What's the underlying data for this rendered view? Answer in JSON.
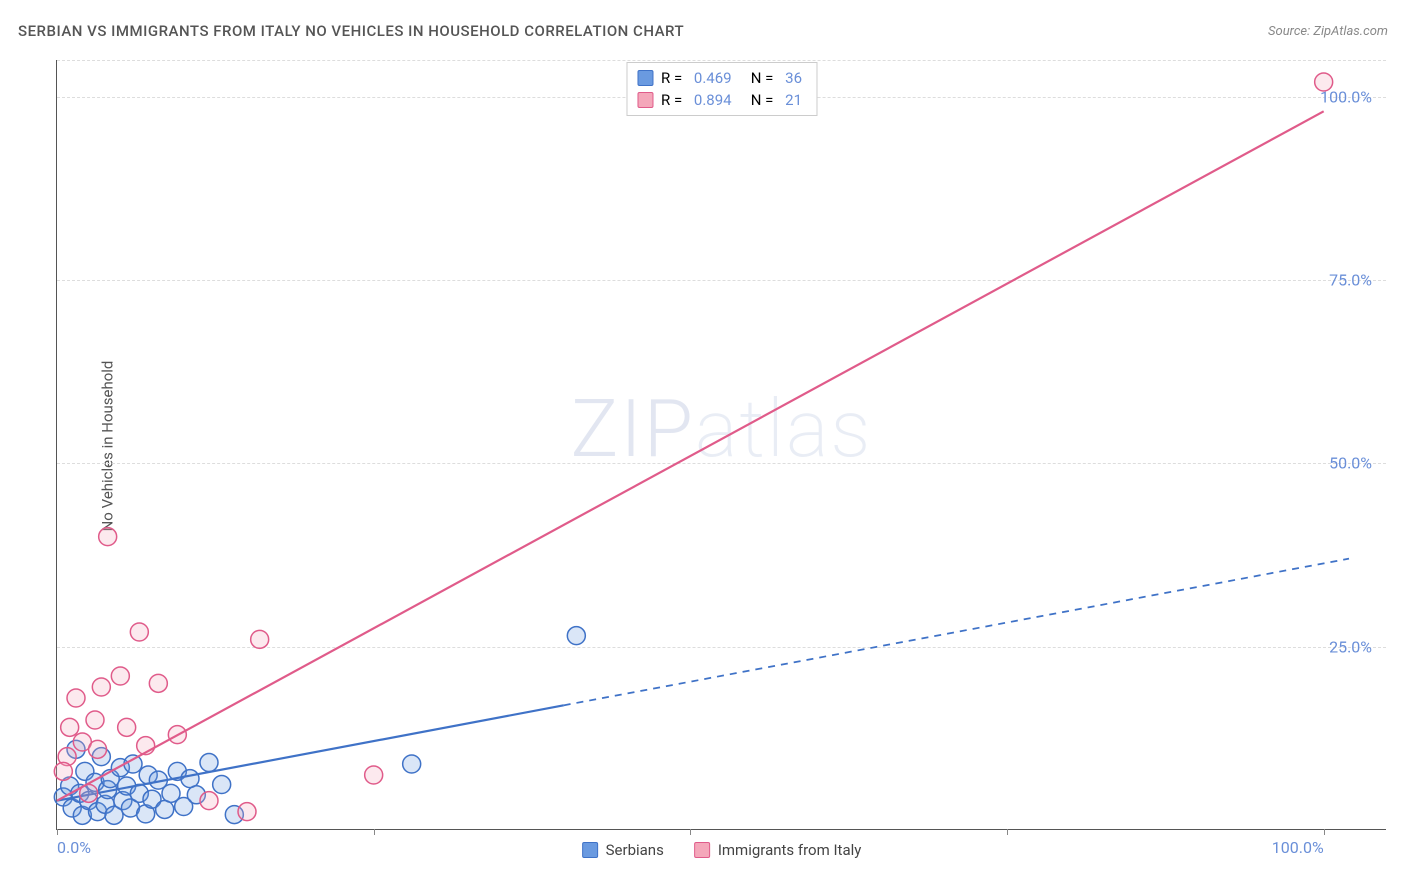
{
  "title": "SERBIAN VS IMMIGRANTS FROM ITALY NO VEHICLES IN HOUSEHOLD CORRELATION CHART",
  "source": "Source: ZipAtlas.com",
  "ylabel": "No Vehicles in Household",
  "watermark_a": "ZIP",
  "watermark_b": "atlas",
  "chart": {
    "type": "scatter",
    "xlim": [
      0,
      105
    ],
    "ylim": [
      0,
      105
    ],
    "ytick_values": [
      25,
      50,
      75,
      100
    ],
    "ytick_labels": [
      "25.0%",
      "50.0%",
      "75.0%",
      "100.0%"
    ],
    "xtick_values": [
      0,
      25,
      50,
      75,
      100
    ],
    "xtick_labels_left": "0.0%",
    "xtick_labels_right": "100.0%",
    "background_color": "#ffffff",
    "grid_color": "#dddddd",
    "axis_color": "#555555",
    "tick_label_color": "#6a8fd8",
    "marker_radius": 9,
    "marker_stroke_width": 1.5,
    "marker_fill_opacity": 0.25,
    "series": [
      {
        "name": "Serbians",
        "color": "#6a9ae0",
        "stroke": "#3f72c7",
        "r_value": "0.469",
        "n_value": "36",
        "line": {
          "x1": 0,
          "y1": 4,
          "x2": 40,
          "y2": 17,
          "dash_x2": 102,
          "dash_y2": 37,
          "width": 2.2
        },
        "points": [
          [
            0.5,
            4.5
          ],
          [
            1,
            6
          ],
          [
            1.2,
            3
          ],
          [
            1.5,
            11
          ],
          [
            1.8,
            5
          ],
          [
            2,
            2
          ],
          [
            2.2,
            8
          ],
          [
            2.5,
            4
          ],
          [
            3,
            6.5
          ],
          [
            3.2,
            2.5
          ],
          [
            3.5,
            10
          ],
          [
            3.8,
            3.5
          ],
          [
            4,
            5.5
          ],
          [
            4.2,
            7
          ],
          [
            4.5,
            2
          ],
          [
            5,
            8.5
          ],
          [
            5.2,
            4
          ],
          [
            5.5,
            6
          ],
          [
            5.8,
            3
          ],
          [
            6,
            9
          ],
          [
            6.5,
            5
          ],
          [
            7,
            2.2
          ],
          [
            7.2,
            7.5
          ],
          [
            7.5,
            4.2
          ],
          [
            8,
            6.8
          ],
          [
            8.5,
            2.8
          ],
          [
            9,
            5
          ],
          [
            9.5,
            8
          ],
          [
            10,
            3.2
          ],
          [
            10.5,
            7
          ],
          [
            11,
            4.8
          ],
          [
            12,
            9.2
          ],
          [
            13,
            6.2
          ],
          [
            14,
            2.1
          ],
          [
            28,
            9
          ],
          [
            41,
            26.5
          ]
        ]
      },
      {
        "name": "Immigrants from Italy",
        "color": "#f4a7ba",
        "stroke": "#e05b8a",
        "r_value": "0.894",
        "n_value": "21",
        "line": {
          "x1": 0,
          "y1": 4,
          "x2": 100,
          "y2": 98,
          "width": 2.2
        },
        "points": [
          [
            0.8,
            10
          ],
          [
            1,
            14
          ],
          [
            1.5,
            18
          ],
          [
            2,
            12
          ],
          [
            0.5,
            8
          ],
          [
            2.5,
            5
          ],
          [
            3,
            15
          ],
          [
            3.2,
            11
          ],
          [
            3.5,
            19.5
          ],
          [
            4,
            40
          ],
          [
            5,
            21
          ],
          [
            5.5,
            14
          ],
          [
            6.5,
            27
          ],
          [
            7,
            11.5
          ],
          [
            8,
            20
          ],
          [
            9.5,
            13
          ],
          [
            12,
            4
          ],
          [
            15,
            2.5
          ],
          [
            16,
            26
          ],
          [
            25,
            7.5
          ],
          [
            100,
            102
          ]
        ]
      }
    ]
  },
  "legend": {
    "series1_label": "Serbians",
    "series2_label": "Immigrants from Italy"
  }
}
